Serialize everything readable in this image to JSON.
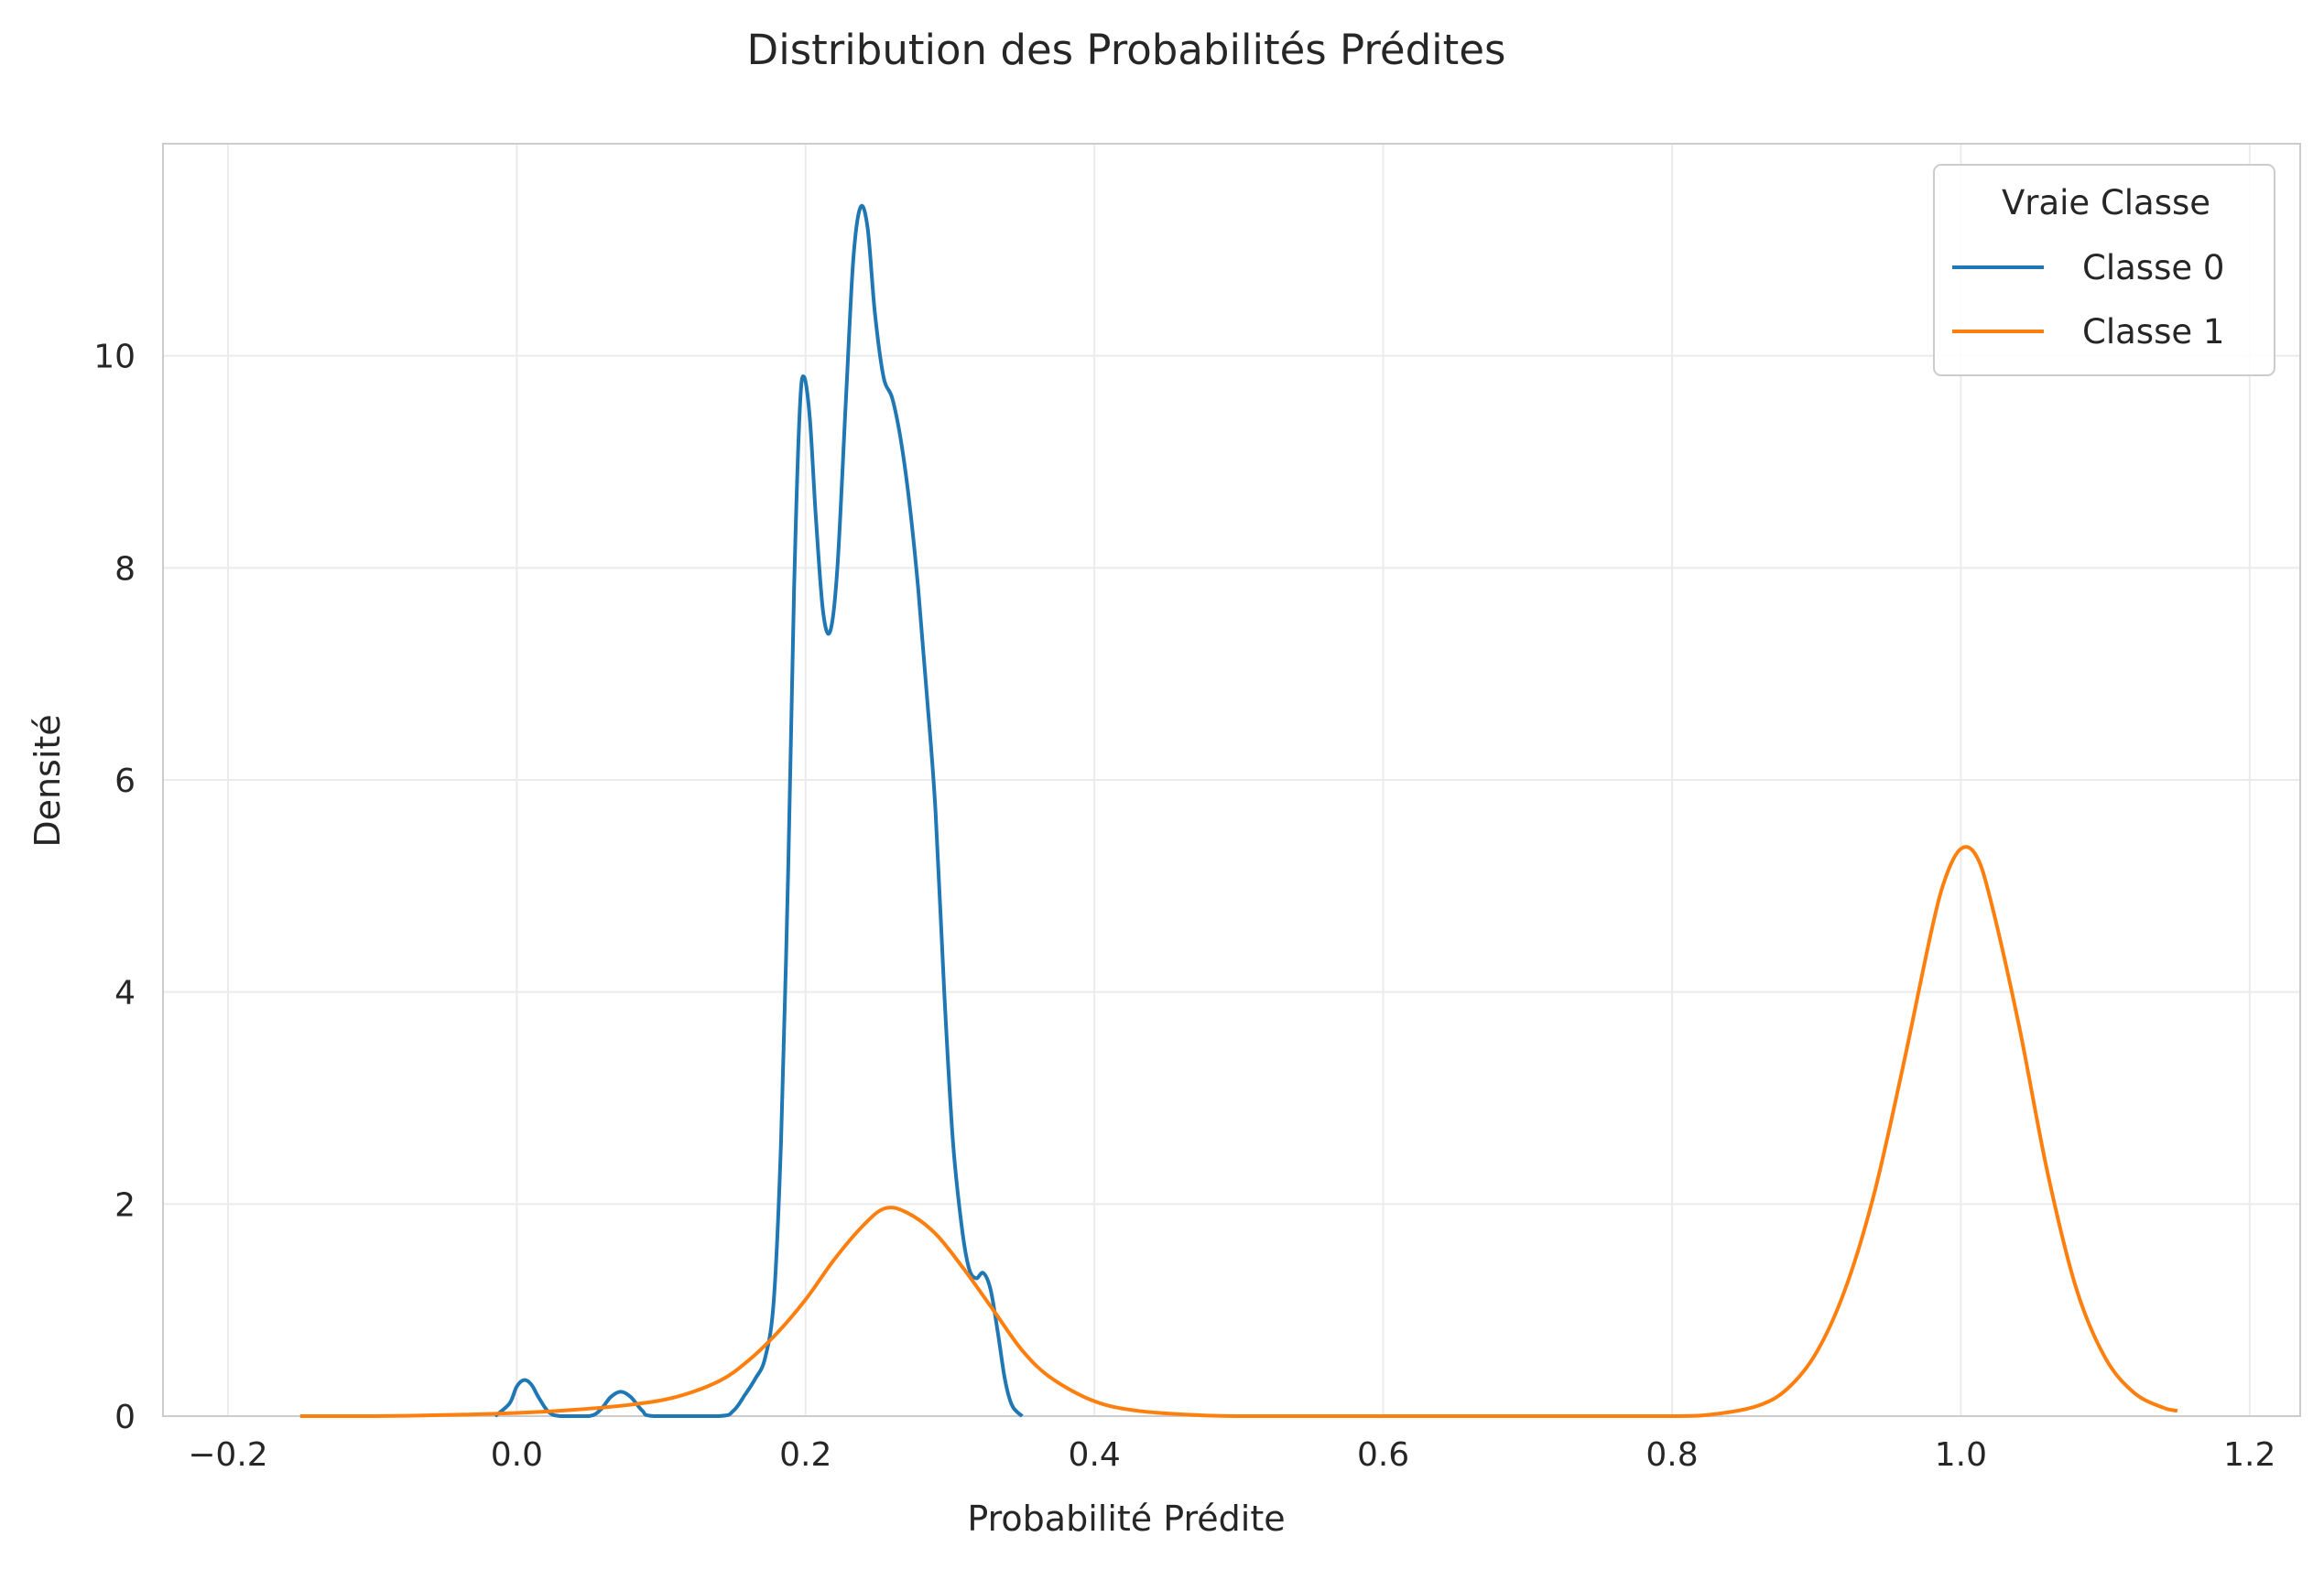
{
  "chart_data": {
    "type": "line",
    "title": "Distribution des Probabilités Prédites",
    "xlabel": "Probabilité Prédite",
    "ylabel": "Densité",
    "xlim": [
      -0.245,
      1.235
    ],
    "ylim": [
      0,
      12.0
    ],
    "xticks": [
      -0.2,
      0.0,
      0.2,
      0.4,
      0.6,
      0.8,
      1.0,
      1.2
    ],
    "xtick_labels": [
      "−0.2",
      "0.0",
      "0.2",
      "0.4",
      "0.6",
      "0.8",
      "1.0",
      "1.2"
    ],
    "yticks": [
      0,
      2,
      4,
      6,
      8,
      10
    ],
    "ytick_labels": [
      "0",
      "2",
      "4",
      "6",
      "8",
      "10"
    ],
    "grid": true,
    "legend": {
      "title": "Vraie Classe",
      "position": "top-right"
    },
    "series": [
      {
        "name": "Classe 0",
        "color": "#1f77b4",
        "points": [
          [
            -0.015,
            0.0
          ],
          [
            -0.005,
            0.12
          ],
          [
            0.0,
            0.28
          ],
          [
            0.005,
            0.34
          ],
          [
            0.01,
            0.3
          ],
          [
            0.015,
            0.18
          ],
          [
            0.022,
            0.04
          ],
          [
            0.03,
            0.0
          ],
          [
            0.05,
            0.0
          ],
          [
            0.058,
            0.06
          ],
          [
            0.065,
            0.18
          ],
          [
            0.072,
            0.23
          ],
          [
            0.079,
            0.18
          ],
          [
            0.087,
            0.05
          ],
          [
            0.095,
            0.0
          ],
          [
            0.14,
            0.0
          ],
          [
            0.15,
            0.05
          ],
          [
            0.158,
            0.2
          ],
          [
            0.165,
            0.35
          ],
          [
            0.172,
            0.55
          ],
          [
            0.178,
            1.1
          ],
          [
            0.183,
            2.6
          ],
          [
            0.188,
            5.2
          ],
          [
            0.192,
            7.8
          ],
          [
            0.196,
            9.5
          ],
          [
            0.199,
            9.8
          ],
          [
            0.203,
            9.4
          ],
          [
            0.207,
            8.5
          ],
          [
            0.212,
            7.6
          ],
          [
            0.217,
            7.4
          ],
          [
            0.222,
            8.0
          ],
          [
            0.228,
            9.6
          ],
          [
            0.233,
            10.9
          ],
          [
            0.238,
            11.4
          ],
          [
            0.243,
            11.2
          ],
          [
            0.248,
            10.4
          ],
          [
            0.254,
            9.8
          ],
          [
            0.26,
            9.6
          ],
          [
            0.266,
            9.2
          ],
          [
            0.272,
            8.6
          ],
          [
            0.278,
            7.8
          ],
          [
            0.284,
            6.8
          ],
          [
            0.29,
            5.7
          ],
          [
            0.296,
            4.0
          ],
          [
            0.302,
            2.6
          ],
          [
            0.308,
            1.8
          ],
          [
            0.313,
            1.4
          ],
          [
            0.318,
            1.3
          ],
          [
            0.323,
            1.35
          ],
          [
            0.328,
            1.2
          ],
          [
            0.333,
            0.8
          ],
          [
            0.338,
            0.35
          ],
          [
            0.343,
            0.1
          ],
          [
            0.35,
            0.0
          ]
        ]
      },
      {
        "name": "Classe 1",
        "color": "#ff7f0e",
        "points": [
          [
            -0.15,
            0.0
          ],
          [
            -0.1,
            0.0
          ],
          [
            -0.05,
            0.01
          ],
          [
            0.0,
            0.03
          ],
          [
            0.04,
            0.06
          ],
          [
            0.08,
            0.11
          ],
          [
            0.11,
            0.18
          ],
          [
            0.14,
            0.33
          ],
          [
            0.16,
            0.52
          ],
          [
            0.18,
            0.78
          ],
          [
            0.2,
            1.1
          ],
          [
            0.22,
            1.48
          ],
          [
            0.24,
            1.8
          ],
          [
            0.255,
            1.96
          ],
          [
            0.27,
            1.92
          ],
          [
            0.29,
            1.72
          ],
          [
            0.31,
            1.38
          ],
          [
            0.33,
            1.0
          ],
          [
            0.35,
            0.62
          ],
          [
            0.37,
            0.36
          ],
          [
            0.4,
            0.14
          ],
          [
            0.43,
            0.05
          ],
          [
            0.47,
            0.01
          ],
          [
            0.5,
            0.0
          ],
          [
            0.6,
            0.0
          ],
          [
            0.7,
            0.0
          ],
          [
            0.8,
            0.0
          ],
          [
            0.83,
            0.02
          ],
          [
            0.86,
            0.1
          ],
          [
            0.88,
            0.26
          ],
          [
            0.9,
            0.6
          ],
          [
            0.92,
            1.2
          ],
          [
            0.94,
            2.1
          ],
          [
            0.96,
            3.3
          ],
          [
            0.98,
            4.6
          ],
          [
            0.99,
            5.1
          ],
          [
            1.0,
            5.35
          ],
          [
            1.01,
            5.3
          ],
          [
            1.02,
            4.9
          ],
          [
            1.04,
            3.7
          ],
          [
            1.06,
            2.3
          ],
          [
            1.08,
            1.2
          ],
          [
            1.1,
            0.55
          ],
          [
            1.12,
            0.22
          ],
          [
            1.14,
            0.08
          ],
          [
            1.15,
            0.05
          ]
        ]
      }
    ]
  },
  "style": {
    "grid_color": "#ebebeb",
    "spine_color": "#cccccc",
    "text_color": "#262626"
  }
}
